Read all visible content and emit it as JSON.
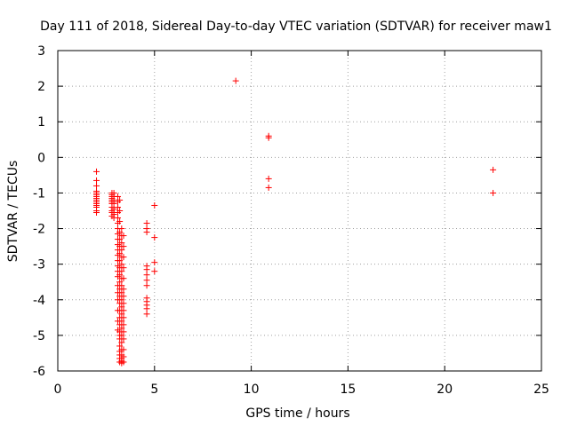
{
  "chart_data": {
    "type": "scatter",
    "title": "Day 111 of 2018, Sidereal Day-to-day VTEC variation (SDTVAR) for receiver maw1",
    "xlabel": "GPS time / hours",
    "ylabel": "SDTVAR / TECUs",
    "xlim": [
      0,
      25
    ],
    "ylim": [
      -6,
      3
    ],
    "xticks": [
      0,
      5,
      10,
      15,
      20,
      25
    ],
    "yticks": [
      -6,
      -5,
      -4,
      -3,
      -2,
      -1,
      0,
      1,
      2,
      3
    ],
    "grid": true,
    "marker": "+",
    "color": "#ff0000",
    "series": [
      {
        "name": "SDTVAR",
        "x": [
          2.0,
          2.0,
          2.0,
          2.0,
          2.0,
          2.0,
          2.0,
          2.0,
          2.0,
          2.0,
          2.0,
          2.0,
          2.0,
          2.0,
          2.0,
          2.8,
          2.8,
          2.8,
          2.8,
          2.8,
          2.8,
          2.8,
          2.8,
          2.8,
          2.8,
          2.8,
          2.9,
          2.9,
          2.9,
          2.9,
          2.9,
          2.9,
          2.9,
          2.9,
          3.1,
          3.1,
          3.1,
          3.1,
          3.1,
          3.1,
          3.1,
          3.1,
          3.1,
          3.1,
          3.1,
          3.1,
          3.1,
          3.1,
          3.1,
          3.1,
          3.1,
          3.1,
          3.1,
          3.1,
          3.1,
          3.1,
          3.2,
          3.2,
          3.2,
          3.2,
          3.2,
          3.2,
          3.2,
          3.2,
          3.2,
          3.2,
          3.2,
          3.2,
          3.2,
          3.2,
          3.2,
          3.2,
          3.2,
          3.2,
          3.2,
          3.2,
          3.2,
          3.2,
          3.2,
          3.2,
          3.2,
          3.3,
          3.3,
          3.3,
          3.3,
          3.3,
          3.3,
          3.3,
          3.3,
          3.3,
          3.3,
          3.3,
          3.3,
          3.3,
          3.3,
          3.3,
          3.3,
          3.3,
          3.3,
          3.3,
          3.3,
          3.3,
          3.3,
          3.4,
          3.4,
          3.4,
          3.4,
          3.4,
          3.4,
          3.4,
          3.4,
          3.4,
          3.4,
          3.4,
          3.4,
          3.4,
          3.4,
          3.4,
          3.4,
          4.6,
          4.6,
          4.6,
          4.6,
          4.6,
          4.6,
          4.6,
          4.6,
          4.6,
          4.6,
          4.6,
          4.6,
          4.6,
          5.0,
          5.0,
          5.0,
          5.0,
          9.2,
          10.9,
          10.9,
          10.9,
          10.9,
          22.5,
          22.5
        ],
        "y": [
          -0.4,
          -0.65,
          -0.8,
          -0.95,
          -1.0,
          -1.05,
          -1.1,
          -1.15,
          -1.2,
          -1.25,
          -1.3,
          -1.35,
          -1.4,
          -1.5,
          -1.55,
          -1.0,
          -1.05,
          -1.1,
          -1.15,
          -1.2,
          -1.25,
          -1.3,
          -1.4,
          -1.5,
          -1.55,
          -1.65,
          -1.0,
          -1.1,
          -1.2,
          -1.3,
          -1.45,
          -1.55,
          -1.6,
          -1.7,
          -1.1,
          -1.25,
          -1.4,
          -1.55,
          -1.7,
          -1.85,
          -2.0,
          -2.15,
          -2.3,
          -2.45,
          -2.6,
          -2.75,
          -2.9,
          -3.05,
          -3.2,
          -3.35,
          -3.6,
          -3.8,
          -4.0,
          -4.3,
          -4.6,
          -4.85,
          -1.2,
          -1.5,
          -1.8,
          -2.1,
          -2.3,
          -2.5,
          -2.7,
          -2.9,
          -3.1,
          -3.3,
          -3.5,
          -3.7,
          -3.9,
          -4.1,
          -4.3,
          -4.5,
          -4.7,
          -4.9,
          -5.0,
          -5.1,
          -5.3,
          -5.45,
          -5.55,
          -5.65,
          -5.75,
          -2.0,
          -2.2,
          -2.4,
          -2.6,
          -2.8,
          -3.0,
          -3.2,
          -3.4,
          -3.6,
          -3.8,
          -4.0,
          -4.2,
          -4.4,
          -4.6,
          -4.8,
          -5.0,
          -5.2,
          -5.4,
          -5.55,
          -5.65,
          -5.72,
          -5.78,
          -2.2,
          -2.5,
          -2.8,
          -3.1,
          -3.4,
          -3.7,
          -3.9,
          -4.1,
          -4.3,
          -4.5,
          -4.7,
          -4.9,
          -5.1,
          -5.4,
          -5.6,
          -5.75,
          -1.85,
          -2.0,
          -2.1,
          -3.05,
          -3.15,
          -3.3,
          -3.45,
          -3.6,
          -3.95,
          -4.05,
          -4.15,
          -4.25,
          -4.4,
          -1.35,
          -2.25,
          -2.95,
          -3.2,
          2.15,
          0.55,
          0.6,
          -0.6,
          -0.85,
          -0.35,
          -1.0
        ]
      }
    ]
  }
}
